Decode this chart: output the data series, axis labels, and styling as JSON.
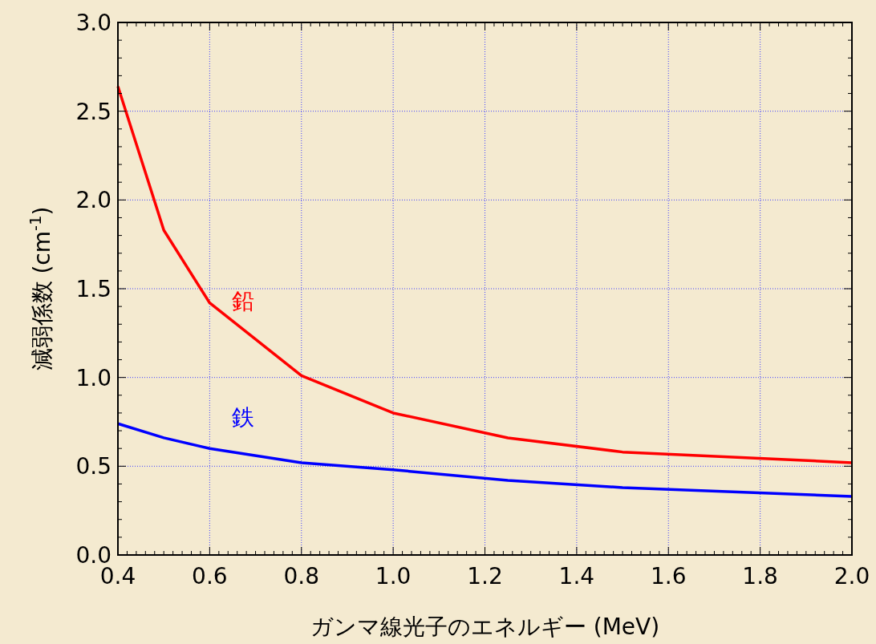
{
  "chart_data": {
    "type": "line",
    "xlabel": "ガンマ線光子のエネルギー (MeV)",
    "ylabel": "減弱係数 (cm$^{-1}$)",
    "x": [
      0.4,
      0.5,
      0.6,
      0.8,
      1.0,
      1.25,
      1.5,
      2.0
    ],
    "series": [
      {
        "name": "鉛",
        "color": "#ff0000",
        "values": [
          2.64,
          1.83,
          1.42,
          1.01,
          0.8,
          0.66,
          0.58,
          0.52
        ]
      },
      {
        "name": "鉄",
        "color": "#0000ff",
        "values": [
          0.74,
          0.66,
          0.6,
          0.52,
          0.48,
          0.42,
          0.38,
          0.33
        ]
      }
    ],
    "xlim": [
      0.4,
      2.0
    ],
    "xticks": [
      {
        "value": 0.4,
        "label": "0.4"
      },
      {
        "value": 0.6,
        "label": "0.6"
      },
      {
        "value": 0.8,
        "label": "0.8"
      },
      {
        "value": 1.0,
        "label": "1.0"
      },
      {
        "value": 1.2,
        "label": "1.2"
      },
      {
        "value": 1.4,
        "label": "1.4"
      },
      {
        "value": 1.6,
        "label": "1.6"
      },
      {
        "value": 1.8,
        "label": "1.8"
      },
      {
        "value": 2.0,
        "label": "2.0"
      }
    ],
    "ylim": [
      0,
      3.0
    ],
    "yticks": [
      {
        "value": 0,
        "label": "0.0"
      },
      {
        "value": 0.5,
        "label": "0.5"
      },
      {
        "value": 1.0,
        "label": "1.0"
      },
      {
        "value": 1.5,
        "label": "1.5"
      },
      {
        "value": 2.0,
        "label": "2.0"
      },
      {
        "value": 2.5,
        "label": "2.5"
      },
      {
        "value": 3.0,
        "label": "3.0"
      }
    ],
    "grid": true,
    "marker": "none",
    "line_style": "solid"
  }
}
